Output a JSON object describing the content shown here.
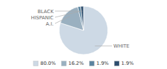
{
  "chart_data": {
    "type": "pie",
    "categories": [
      "80.0%",
      "16.2%",
      "1.9%",
      "1.9%"
    ],
    "values": [
      80.0,
      16.2,
      1.9,
      1.9
    ],
    "colors": [
      "#cdd9e5",
      "#9ab0c0",
      "#5b85a0",
      "#2e4e6e"
    ],
    "annotations": [
      "WHITE",
      "A.I.",
      "HISPANIC",
      "BLACK"
    ],
    "legend": "bottom"
  }
}
